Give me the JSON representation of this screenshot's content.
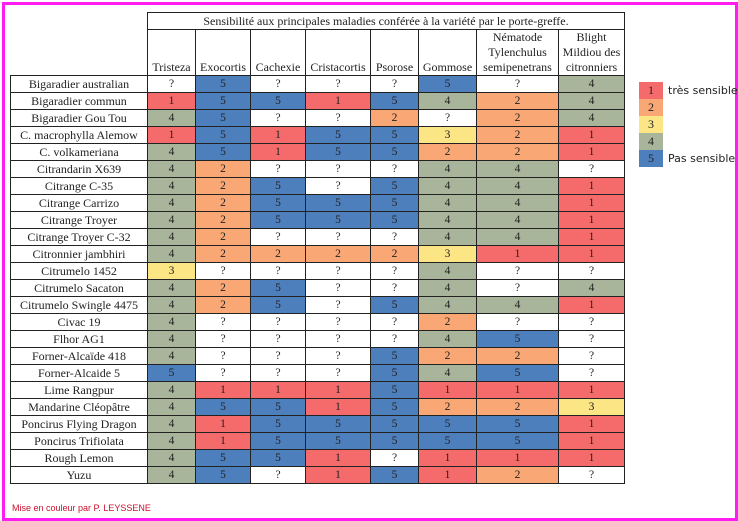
{
  "title": "Sensibilité aux principales maladies conférée à la variété par le porte-greffe.",
  "columns": [
    [
      "Tristeza"
    ],
    [
      "Exocortis"
    ],
    [
      "Cachexie"
    ],
    [
      "Cristacortis"
    ],
    [
      "Psorose"
    ],
    [
      "Gommose"
    ],
    [
      "Nématode",
      "Tylenchulus",
      "semipenetrans"
    ],
    [
      "Blight",
      "Mildiou des",
      "citronniers"
    ]
  ],
  "rows": [
    {
      "name": "Bigaradier australian",
      "values": [
        "?",
        "5",
        "?",
        "?",
        "?",
        "5",
        "?",
        "4"
      ]
    },
    {
      "name": "Bigaradier commun",
      "values": [
        "1",
        "5",
        "5",
        "1",
        "5",
        "4",
        "2",
        "4"
      ]
    },
    {
      "name": "Bigaradier Gou Tou",
      "values": [
        "4",
        "5",
        "?",
        "?",
        "2",
        "?",
        "2",
        "4"
      ]
    },
    {
      "name": "C. macrophylla Alemow",
      "values": [
        "1",
        "5",
        "1",
        "5",
        "5",
        "3",
        "2",
        "1"
      ]
    },
    {
      "name": "C. volkameriana",
      "values": [
        "4",
        "5",
        "1",
        "5",
        "5",
        "2",
        "2",
        "1"
      ]
    },
    {
      "name": "Citrandarin X639",
      "values": [
        "4",
        "2",
        "?",
        "?",
        "?",
        "4",
        "4",
        "?"
      ]
    },
    {
      "name": "Citrange C-35",
      "values": [
        "4",
        "2",
        "5",
        "?",
        "5",
        "4",
        "4",
        "1"
      ]
    },
    {
      "name": "Citrange Carrizo",
      "values": [
        "4",
        "2",
        "5",
        "5",
        "5",
        "4",
        "4",
        "1"
      ]
    },
    {
      "name": "Citrange Troyer",
      "values": [
        "4",
        "2",
        "5",
        "5",
        "5",
        "4",
        "4",
        "1"
      ]
    },
    {
      "name": "Citrange Troyer C-32",
      "values": [
        "4",
        "2",
        "?",
        "?",
        "?",
        "4",
        "4",
        "1"
      ]
    },
    {
      "name": "Citronnier jambhiri",
      "values": [
        "4",
        "2",
        "2",
        "2",
        "2",
        "3",
        "1",
        "1"
      ]
    },
    {
      "name": "Citrumelo 1452",
      "values": [
        "3",
        "?",
        "?",
        "?",
        "?",
        "4",
        "?",
        "?"
      ]
    },
    {
      "name": "Citrumelo Sacaton",
      "values": [
        "4",
        "2",
        "5",
        "?",
        "?",
        "4",
        "?",
        "4"
      ]
    },
    {
      "name": "Citrumelo Swingle 4475",
      "values": [
        "4",
        "2",
        "5",
        "?",
        "5",
        "4",
        "4",
        "1"
      ]
    },
    {
      "name": "Civac 19",
      "values": [
        "4",
        "?",
        "?",
        "?",
        "?",
        "2",
        "?",
        "?"
      ]
    },
    {
      "name": "Flhor AG1",
      "values": [
        "4",
        "?",
        "?",
        "?",
        "?",
        "4",
        "5",
        "?"
      ]
    },
    {
      "name": "Forner-Alcaïde 418",
      "values": [
        "4",
        "?",
        "?",
        "?",
        "5",
        "2",
        "2",
        "?"
      ]
    },
    {
      "name": "Forner-Alcaide 5",
      "values": [
        "5",
        "?",
        "?",
        "?",
        "5",
        "4",
        "5",
        "?"
      ]
    },
    {
      "name": "Lime Rangpur",
      "values": [
        "4",
        "1",
        "1",
        "1",
        "5",
        "1",
        "1",
        "1"
      ]
    },
    {
      "name": "Mandarine Cléopâtre",
      "values": [
        "4",
        "5",
        "5",
        "1",
        "5",
        "2",
        "2",
        "3"
      ]
    },
    {
      "name": "Poncirus Flying Dragon",
      "values": [
        "4",
        "1",
        "5",
        "5",
        "5",
        "5",
        "5",
        "1"
      ]
    },
    {
      "name": "Poncirus Trifiolata",
      "values": [
        "4",
        "1",
        "5",
        "5",
        "5",
        "5",
        "5",
        "1"
      ]
    },
    {
      "name": "Rough Lemon",
      "values": [
        "4",
        "5",
        "5",
        "1",
        "?",
        "1",
        "1",
        "1"
      ]
    },
    {
      "name": "Yuzu",
      "values": [
        "4",
        "5",
        "?",
        "1",
        "5",
        "1",
        "2",
        "?"
      ]
    }
  ],
  "legend": [
    {
      "value": "1",
      "label": "très sensible",
      "color": "#f56a6a"
    },
    {
      "value": "2",
      "label": "",
      "color": "#f8a775"
    },
    {
      "value": "3",
      "label": "",
      "color": "#fbe585"
    },
    {
      "value": "4",
      "label": "",
      "color": "#a8b59b"
    },
    {
      "value": "5",
      "label": "Pas sensible",
      "color": "#4e7fbd"
    }
  ],
  "credit": "Mise en couleur par P. LEYSSENE"
}
